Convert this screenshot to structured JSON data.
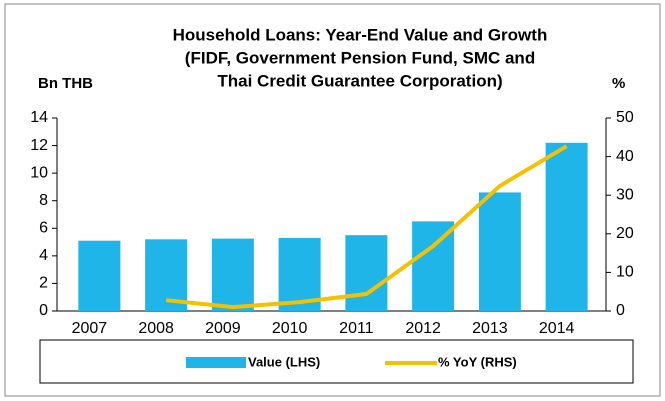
{
  "chart_data": {
    "type": "bar_line",
    "title": [
      "Household Loans: Year-End Value and Growth",
      "(FIDF, Government Pension Fund, SMC and",
      "Thai Credit Guarantee Corporation)"
    ],
    "y_label": "Bn THB",
    "y2_label": "%",
    "categories": [
      "2007",
      "2008",
      "2009",
      "2010",
      "2011",
      "2012",
      "2013",
      "2014"
    ],
    "series": [
      {
        "name": "Value (LHS)",
        "type": "bar",
        "color": "#1fb5e8",
        "values": [
          5.1,
          5.2,
          5.25,
          5.3,
          5.5,
          6.5,
          8.6,
          12.2
        ]
      },
      {
        "name": "% YoY (RHS)",
        "type": "line",
        "axis": "y2",
        "color": "#f5c000",
        "values": [
          null,
          2.8,
          1.0,
          2.3,
          4.4,
          16.8,
          32.4,
          42.7
        ]
      }
    ],
    "ylim": [
      0,
      14
    ],
    "yticks": [
      0,
      2,
      4,
      6,
      8,
      10,
      12,
      14
    ],
    "y2lim": [
      0,
      50
    ],
    "y2ticks": [
      0,
      10,
      20,
      30,
      40,
      50
    ],
    "legend": "bottom"
  }
}
